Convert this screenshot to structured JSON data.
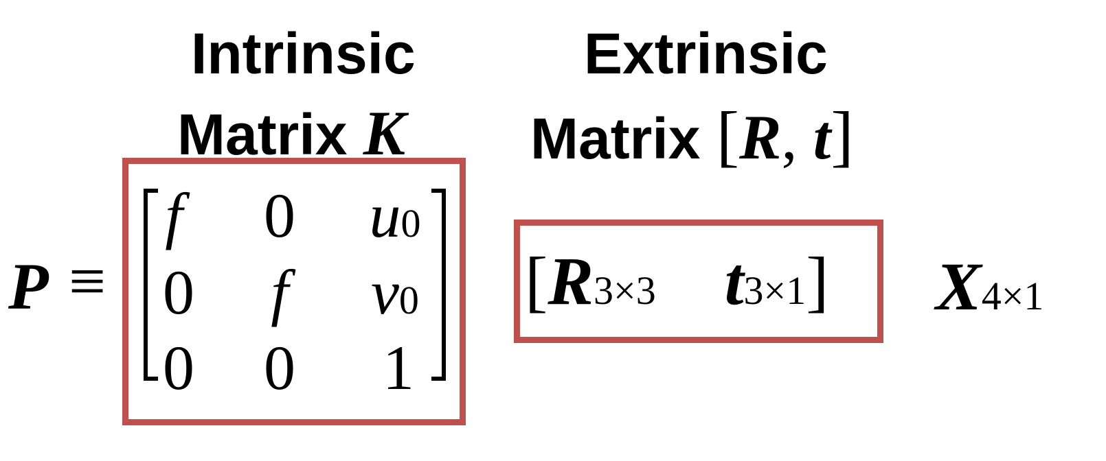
{
  "labels": {
    "intrinsic_line1": "Intrinsic",
    "intrinsic_line2": "Matrix",
    "intrinsic_symbol": "K",
    "extrinsic_line1": "Extrinsic",
    "extrinsic_line2": "Matrix",
    "extrinsic_symbol_open": "[",
    "extrinsic_symbol_R": "R",
    "extrinsic_symbol_comma": ",",
    "extrinsic_symbol_t": "t",
    "extrinsic_symbol_close": "]"
  },
  "equation": {
    "lhs": "P",
    "equiv": "≡",
    "K_matrix": [
      [
        "f",
        "0",
        "u",
        "0"
      ],
      [
        "0",
        "f",
        "v",
        "0"
      ],
      [
        "0",
        "0",
        "1",
        ""
      ]
    ],
    "R_symbol": "R",
    "R_sub": "3×3",
    "t_symbol": "t",
    "t_sub": "3×1",
    "X_symbol": "X",
    "X_sub": "4×1"
  },
  "colors": {
    "box_border": "#c0504d",
    "text": "#000000",
    "background": "#ffffff"
  }
}
